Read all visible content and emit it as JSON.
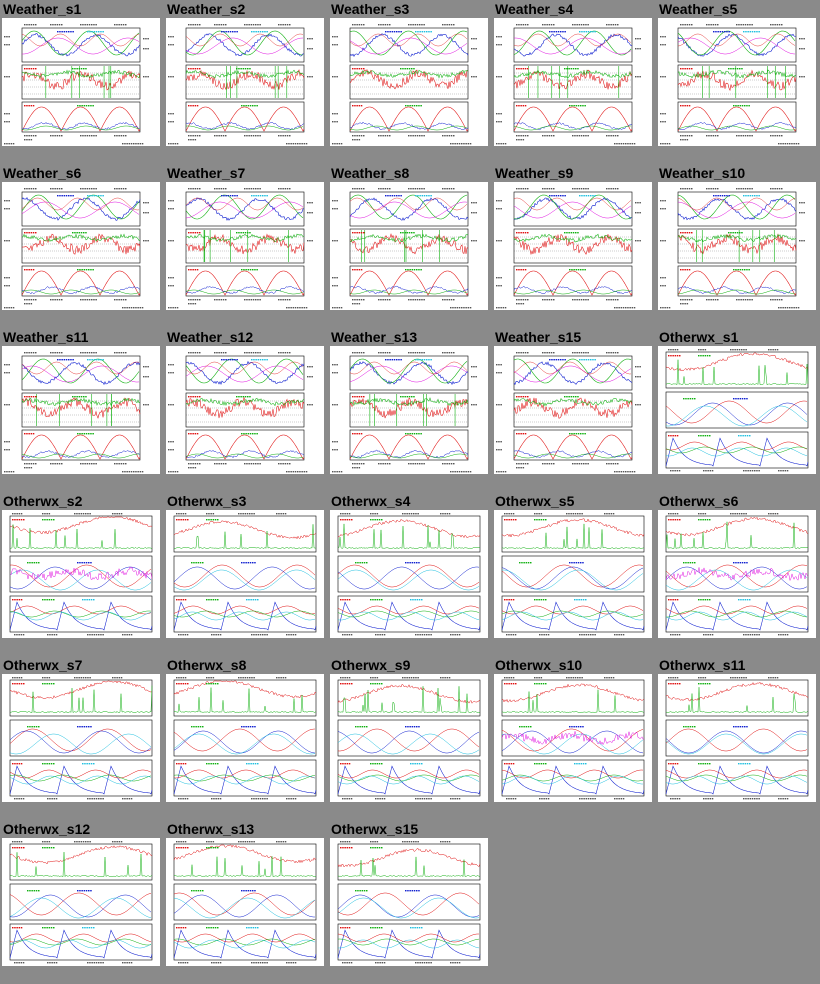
{
  "thumbnails": [
    {
      "label": "Weather_s1",
      "kind": "weather",
      "seed": 1
    },
    {
      "label": "Weather_s2",
      "kind": "weather",
      "seed": 2
    },
    {
      "label": "Weather_s3",
      "kind": "weather",
      "seed": 3
    },
    {
      "label": "Weather_s4",
      "kind": "weather",
      "seed": 4
    },
    {
      "label": "Weather_s5",
      "kind": "weather",
      "seed": 5
    },
    {
      "label": "Weather_s6",
      "kind": "weather",
      "seed": 6
    },
    {
      "label": "Weather_s7",
      "kind": "weather",
      "seed": 7
    },
    {
      "label": "Weather_s8",
      "kind": "weather",
      "seed": 8
    },
    {
      "label": "Weather_s9",
      "kind": "weather",
      "seed": 9
    },
    {
      "label": "Weather_s10",
      "kind": "weather",
      "seed": 10
    },
    {
      "label": "Weather_s11",
      "kind": "weather",
      "seed": 11
    },
    {
      "label": "Weather_s12",
      "kind": "weather",
      "seed": 12
    },
    {
      "label": "Weather_s13",
      "kind": "weather",
      "seed": 13
    },
    {
      "label": "Weather_s15",
      "kind": "weather",
      "seed": 15
    },
    {
      "label": "Otherwx_s1",
      "kind": "otherwx",
      "seed": 21
    },
    {
      "label": "Otherwx_s2",
      "kind": "otherwx",
      "seed": 22
    },
    {
      "label": "Otherwx_s3",
      "kind": "otherwx",
      "seed": 23
    },
    {
      "label": "Otherwx_s4",
      "kind": "otherwx",
      "seed": 24
    },
    {
      "label": "Otherwx_s5",
      "kind": "otherwx",
      "seed": 25
    },
    {
      "label": "Otherwx_s6",
      "kind": "otherwx",
      "seed": 26
    },
    {
      "label": "Otherwx_s7",
      "kind": "otherwx",
      "seed": 27
    },
    {
      "label": "Otherwx_s8",
      "kind": "otherwx",
      "seed": 28
    },
    {
      "label": "Otherwx_s9",
      "kind": "otherwx",
      "seed": 29
    },
    {
      "label": "Otherwx_s10",
      "kind": "otherwx",
      "seed": 30
    },
    {
      "label": "Otherwx_s11",
      "kind": "otherwx",
      "seed": 31
    },
    {
      "label": "Otherwx_s12",
      "kind": "otherwx",
      "seed": 32
    },
    {
      "label": "Otherwx_s13",
      "kind": "otherwx",
      "seed": 33
    },
    {
      "label": "Otherwx_s15",
      "kind": "otherwx",
      "seed": 35
    }
  ],
  "colors": {
    "background": "#8a8a8a",
    "panel": "#ffffff",
    "label": "#000000",
    "series_red": "#e01010",
    "series_green": "#10b010",
    "series_blue": "#1020d0",
    "series_cyan": "#20c0e0",
    "series_magenta": "#e010e0"
  }
}
